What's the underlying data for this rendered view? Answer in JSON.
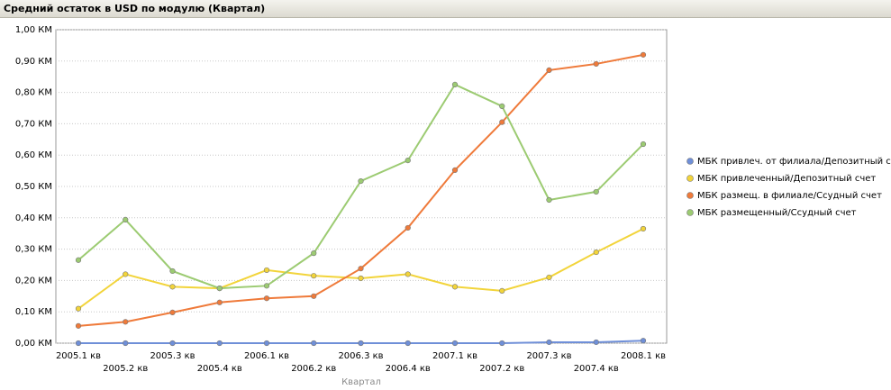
{
  "chart_data": {
    "type": "line",
    "title": "Средний остаток в USD по модулю (Квартал)",
    "x_label": "Квартал",
    "categories": [
      "2005.1 кв",
      "2005.2 кв",
      "2005.3 кв",
      "2005.4 кв",
      "2006.1 кв",
      "2006.2 кв",
      "2006.3 кв",
      "2006.4 кв",
      "2007.1 кв",
      "2007.2 кв",
      "2007.3 кв",
      "2007.4 кв",
      "2008.1 кв"
    ],
    "series": [
      {
        "name": "МБК привлеч. от филиала/Депозитный счет",
        "color": "#6f8fd8",
        "values": [
          0,
          0,
          0,
          0,
          0,
          0,
          0,
          0,
          0,
          0,
          0.003,
          0.003,
          0.008
        ]
      },
      {
        "name": "МБК привлеченный/Депозитный счет",
        "color": "#f2d43a",
        "values": [
          0.11,
          0.22,
          0.18,
          0.175,
          0.233,
          0.215,
          0.207,
          0.22,
          0.18,
          0.167,
          0.21,
          0.29,
          0.365
        ]
      },
      {
        "name": "МБК размещ. в филиале/Ссудный счет",
        "color": "#ef7a3a",
        "values": [
          0.055,
          0.068,
          0.098,
          0.13,
          0.143,
          0.15,
          0.238,
          0.368,
          0.552,
          0.705,
          0.871,
          0.891,
          0.92
        ]
      },
      {
        "name": "МБК размещенный/Ссудный счет",
        "color": "#9ccb72",
        "values": [
          0.265,
          0.394,
          0.23,
          0.175,
          0.183,
          0.287,
          0.517,
          0.583,
          0.825,
          0.756,
          0.457,
          0.483,
          0.635
        ]
      }
    ],
    "ylim": [
      0,
      1
    ],
    "yticks": [
      {
        "value": 0,
        "label": "0,00 КМ"
      },
      {
        "value": 0.1,
        "label": "0,10 КМ"
      },
      {
        "value": 0.2,
        "label": "0,20 КМ"
      },
      {
        "value": 0.3,
        "label": "0,30 КМ"
      },
      {
        "value": 0.4,
        "label": "0,40 КМ"
      },
      {
        "value": 0.5,
        "label": "0,50 КМ"
      },
      {
        "value": 0.6,
        "label": "0,60 КМ"
      },
      {
        "value": 0.7,
        "label": "0,70 КМ"
      },
      {
        "value": 0.8,
        "label": "0,80 КМ"
      },
      {
        "value": 0.9,
        "label": "0,90 КМ"
      },
      {
        "value": 1,
        "label": "1,00 КМ"
      }
    ],
    "grid": true,
    "legend": "right"
  }
}
